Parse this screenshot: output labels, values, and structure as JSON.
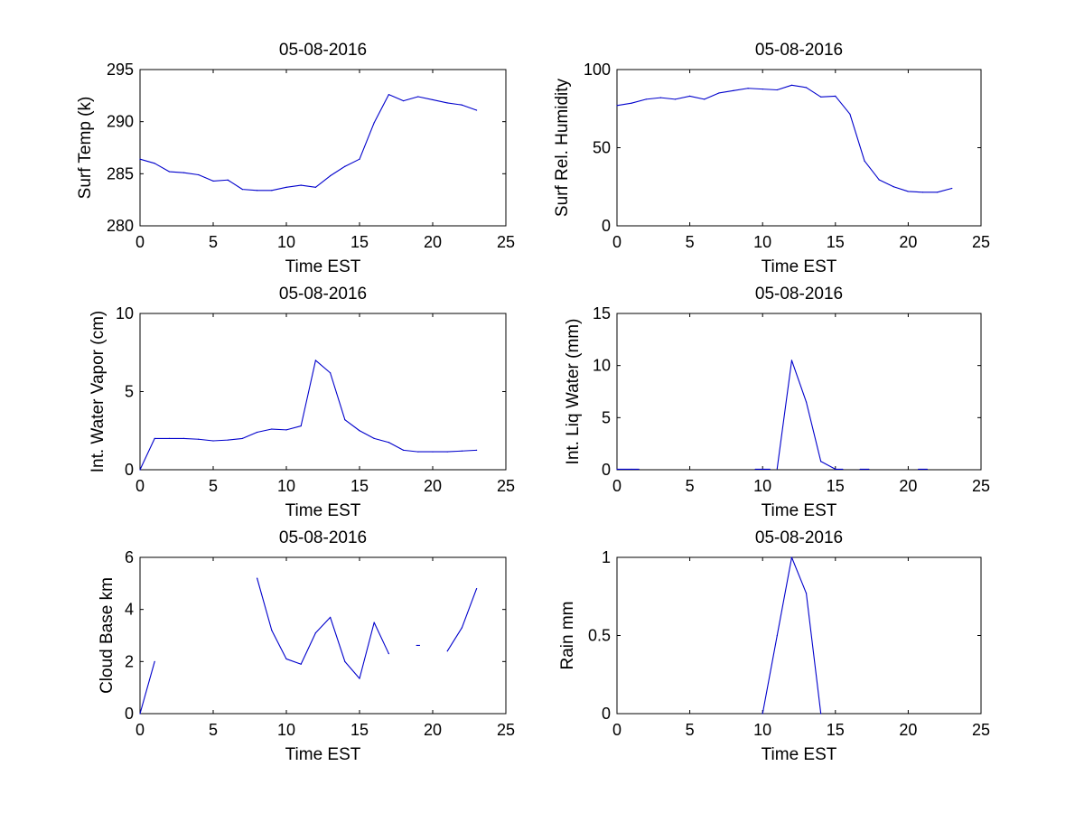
{
  "figure": {
    "background": "#ffffff",
    "line_color": "#0000cc",
    "axis_color": "#000000"
  },
  "chart_data": [
    {
      "type": "line",
      "title": "05-08-2016",
      "xlabel": "Time EST",
      "ylabel": "Surf Temp (k)",
      "xlim": [
        0,
        25
      ],
      "ylim": [
        280,
        295
      ],
      "xticks": [
        0,
        5,
        10,
        15,
        20,
        25
      ],
      "yticks": [
        280,
        285,
        290,
        295
      ],
      "grid": false,
      "series": [
        {
          "x": [
            0,
            1,
            2,
            3,
            4,
            5,
            6,
            7,
            8,
            9,
            10,
            11,
            12,
            13,
            14,
            15,
            16,
            17,
            18,
            19,
            20,
            21,
            22,
            23
          ],
          "values": [
            286.4,
            286.0,
            285.2,
            285.1,
            284.9,
            284.3,
            284.4,
            283.5,
            283.4,
            283.4,
            283.7,
            283.9,
            283.7,
            284.8,
            285.7,
            286.4,
            289.9,
            292.6,
            292.0,
            292.4,
            292.1,
            291.8,
            291.6,
            291.1
          ]
        }
      ]
    },
    {
      "type": "line",
      "title": "05-08-2016",
      "xlabel": "Time EST",
      "ylabel": "Surf Rel. Humidity",
      "xlim": [
        0,
        25
      ],
      "ylim": [
        0,
        100
      ],
      "xticks": [
        0,
        5,
        10,
        15,
        20,
        25
      ],
      "yticks": [
        0,
        50,
        100
      ],
      "grid": false,
      "series": [
        {
          "x": [
            0,
            1,
            2,
            3,
            4,
            5,
            6,
            7,
            8,
            9,
            10,
            11,
            12,
            13,
            14,
            15,
            16,
            17,
            18,
            19,
            20,
            21,
            22,
            23
          ],
          "values": [
            77,
            78.5,
            81,
            82,
            81,
            83,
            81,
            85,
            86.5,
            88,
            87.5,
            87,
            90,
            88.5,
            82.5,
            83,
            71.5,
            41.5,
            29.5,
            25,
            22,
            21.5,
            21.5,
            24
          ]
        }
      ]
    },
    {
      "type": "line",
      "title": "05-08-2016",
      "xlabel": "Time EST",
      "ylabel": "Int. Water Vapor (cm)",
      "xlim": [
        0,
        25
      ],
      "ylim": [
        0,
        10
      ],
      "xticks": [
        0,
        5,
        10,
        15,
        20,
        25
      ],
      "yticks": [
        0,
        5,
        10
      ],
      "grid": false,
      "series": [
        {
          "x": [
            0,
            1,
            2,
            3,
            4,
            5,
            6,
            7,
            8,
            9,
            10,
            11,
            12,
            13,
            14,
            15,
            16,
            17,
            18,
            19,
            20,
            21,
            22,
            23
          ],
          "values": [
            0,
            2.0,
            2.0,
            2.0,
            1.95,
            1.85,
            1.9,
            2.0,
            2.4,
            2.6,
            2.55,
            2.8,
            7.0,
            6.2,
            3.2,
            2.5,
            2.0,
            1.75,
            1.25,
            1.15,
            1.15,
            1.15,
            1.2,
            1.25
          ]
        }
      ]
    },
    {
      "type": "line",
      "title": "05-08-2016",
      "xlabel": "Time EST",
      "ylabel": "Int. Liq Water (mm)",
      "xlim": [
        0,
        25
      ],
      "ylim": [
        0,
        15
      ],
      "xticks": [
        0,
        5,
        10,
        15,
        20,
        25
      ],
      "yticks": [
        0,
        5,
        10,
        15
      ],
      "grid": false,
      "series": [
        {
          "segments": [
            {
              "x": [
                0,
                1,
                1.5
              ],
              "values": [
                0.05,
                0.05,
                0.05
              ]
            },
            {
              "x": [
                9.5,
                10,
                10.5
              ],
              "values": [
                0.05,
                0.05,
                0.05
              ]
            },
            {
              "x": [
                11,
                12,
                13,
                14,
                15,
                15.5
              ],
              "values": [
                0.1,
                10.5,
                6.5,
                0.8,
                0.05,
                0.05
              ]
            },
            {
              "x": [
                16.7,
                17.3
              ],
              "values": [
                0.05,
                0.05
              ]
            },
            {
              "x": [
                20.7,
                21.3
              ],
              "values": [
                0.05,
                0.05
              ]
            }
          ]
        }
      ]
    },
    {
      "type": "line",
      "title": "05-08-2016",
      "xlabel": "Time EST",
      "ylabel": "Cloud Base km",
      "xlim": [
        0,
        25
      ],
      "ylim": [
        0,
        6
      ],
      "xticks": [
        0,
        5,
        10,
        15,
        20,
        25
      ],
      "yticks": [
        0,
        2,
        4,
        6
      ],
      "grid": false,
      "series": [
        {
          "segments": [
            {
              "x": [
                0,
                1
              ],
              "values": [
                0,
                2.0
              ]
            },
            {
              "x": [
                8,
                9,
                10,
                11,
                12,
                13,
                14,
                15,
                16,
                17
              ],
              "values": [
                5.2,
                3.2,
                2.1,
                1.9,
                3.1,
                3.7,
                2.0,
                1.35,
                3.5,
                2.3
              ]
            },
            {
              "x": [
                18.9,
                19.1
              ],
              "values": [
                2.62,
                2.62
              ]
            },
            {
              "x": [
                21,
                22,
                23
              ],
              "values": [
                2.4,
                3.3,
                4.8
              ]
            }
          ]
        }
      ]
    },
    {
      "type": "line",
      "title": "05-08-2016",
      "xlabel": "Time EST",
      "ylabel": "Rain mm",
      "xlim": [
        0,
        25
      ],
      "ylim": [
        0,
        1
      ],
      "xticks": [
        0,
        5,
        10,
        15,
        20,
        25
      ],
      "yticks": [
        0,
        0.5,
        1
      ],
      "grid": false,
      "series": [
        {
          "x": [
            10,
            11,
            12,
            13,
            14
          ],
          "values": [
            0,
            0.5,
            1.0,
            0.77,
            0
          ]
        }
      ]
    }
  ]
}
